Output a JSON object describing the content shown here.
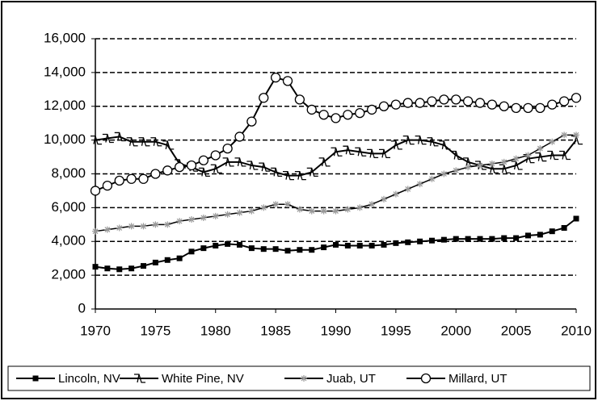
{
  "chart_data": {
    "type": "line",
    "x": [
      1970,
      1971,
      1972,
      1973,
      1974,
      1975,
      1976,
      1977,
      1978,
      1979,
      1980,
      1981,
      1982,
      1983,
      1984,
      1985,
      1986,
      1987,
      1988,
      1989,
      1990,
      1991,
      1992,
      1993,
      1994,
      1995,
      1996,
      1997,
      1998,
      1999,
      2000,
      2001,
      2002,
      2003,
      2004,
      2005,
      2006,
      2007,
      2008,
      2009,
      2010
    ],
    "series": [
      {
        "name": "Lincoln, NV",
        "color": "#000000",
        "marker": "square",
        "values": [
          2500,
          2400,
          2350,
          2400,
          2550,
          2750,
          2900,
          3000,
          3400,
          3600,
          3750,
          3850,
          3800,
          3600,
          3550,
          3550,
          3450,
          3500,
          3500,
          3650,
          3800,
          3750,
          3750,
          3750,
          3800,
          3900,
          3950,
          4000,
          4050,
          4100,
          4150,
          4150,
          4150,
          4150,
          4200,
          4200,
          4350,
          4400,
          4600,
          4800,
          5350
        ]
      },
      {
        "name": "White Pine, NV",
        "color": "#000000",
        "marker": "zigzag",
        "values": [
          10000,
          10100,
          10200,
          9900,
          9900,
          9900,
          9700,
          8600,
          8400,
          8100,
          8300,
          8700,
          8700,
          8500,
          8400,
          8100,
          7900,
          7900,
          8100,
          8700,
          9300,
          9400,
          9300,
          9200,
          9200,
          9700,
          10000,
          10000,
          9900,
          9700,
          9100,
          8700,
          8500,
          8300,
          8300,
          8500,
          8900,
          9000,
          9100,
          9100,
          10000
        ]
      },
      {
        "name": "Juab, UT",
        "color": "#000000",
        "marker": "star",
        "values": [
          4600,
          4700,
          4800,
          4900,
          4900,
          5000,
          5000,
          5200,
          5300,
          5400,
          5500,
          5600,
          5700,
          5800,
          6000,
          6200,
          6200,
          5900,
          5800,
          5800,
          5800,
          5900,
          6000,
          6200,
          6500,
          6800,
          7100,
          7400,
          7700,
          8000,
          8200,
          8400,
          8500,
          8600,
          8700,
          8900,
          9100,
          9500,
          9900,
          10300,
          10300
        ]
      },
      {
        "name": "Millard, UT",
        "color": "#000000",
        "marker": "circle",
        "values": [
          7000,
          7300,
          7600,
          7700,
          7700,
          8000,
          8200,
          8400,
          8500,
          8800,
          9100,
          9500,
          10200,
          11100,
          12500,
          13700,
          13500,
          12400,
          11800,
          11500,
          11300,
          11500,
          11600,
          11800,
          12000,
          12100,
          12200,
          12200,
          12300,
          12400,
          12400,
          12300,
          12200,
          12100,
          12000,
          11900,
          11900,
          11900,
          12100,
          12300,
          12500
        ]
      }
    ],
    "xlim": [
      1970,
      2010
    ],
    "xticks": [
      1970,
      1975,
      1980,
      1985,
      1990,
      1995,
      2000,
      2005,
      2010
    ],
    "ylim": [
      0,
      16000
    ],
    "yticks": [
      0,
      {
        "value": 2000,
        "label": "2,000"
      },
      {
        "value": 4000,
        "label": "4,000"
      },
      {
        "value": 6000,
        "label": "6,000"
      },
      {
        "value": 8000,
        "label": "8,000"
      },
      {
        "value": 10000,
        "label": "10,000"
      },
      {
        "value": 12000,
        "label": "12,000"
      },
      {
        "value": 14000,
        "label": "14,000"
      },
      {
        "value": 16000,
        "label": "16,000"
      }
    ],
    "grid": true,
    "legend": "bottom"
  }
}
